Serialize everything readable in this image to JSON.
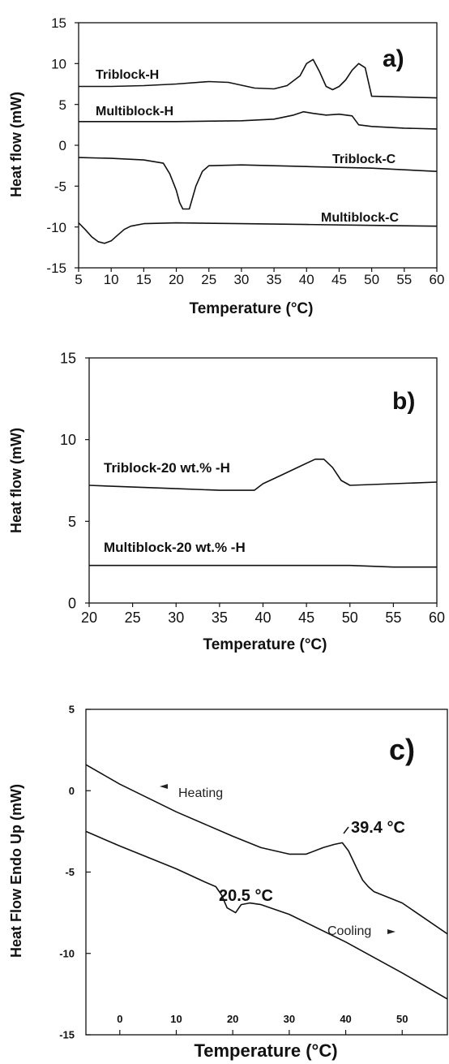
{
  "chart_data": [
    {
      "type": "line",
      "panel_label": "a)",
      "xlabel": "Temperature (°C)",
      "ylabel": "Heat flow (mW)",
      "xlim": [
        5,
        60
      ],
      "ylim": [
        -15,
        15
      ],
      "xticks": [
        5,
        10,
        15,
        20,
        25,
        30,
        35,
        40,
        45,
        50,
        55,
        60
      ],
      "yticks": [
        -15,
        -10,
        -5,
        0,
        5,
        10,
        15
      ],
      "series": [
        {
          "name": "Triblock-H",
          "x": [
            5,
            10,
            15,
            20,
            25,
            28,
            32,
            35,
            37,
            39,
            40,
            41,
            42,
            43,
            44,
            45,
            46,
            47,
            48,
            49,
            50,
            55,
            60
          ],
          "y": [
            7.2,
            7.2,
            7.3,
            7.5,
            7.8,
            7.7,
            7.0,
            6.9,
            7.3,
            8.5,
            10.0,
            10.5,
            9.0,
            7.2,
            6.8,
            7.2,
            8.0,
            9.2,
            10.0,
            9.5,
            6.0,
            5.9,
            5.8
          ]
        },
        {
          "name": "Multiblock-H",
          "x": [
            5,
            10,
            20,
            30,
            35,
            38,
            39.5,
            41,
            43,
            45,
            47,
            48,
            50,
            55,
            60
          ],
          "y": [
            2.9,
            2.9,
            2.9,
            3.0,
            3.2,
            3.7,
            4.1,
            3.9,
            3.7,
            3.8,
            3.6,
            2.5,
            2.3,
            2.1,
            2.0
          ]
        },
        {
          "name": "Triblock-C",
          "x": [
            5,
            10,
            15,
            18,
            19,
            20,
            20.5,
            21,
            22,
            23,
            24,
            25,
            30,
            40,
            50,
            55,
            60
          ],
          "y": [
            -1.5,
            -1.6,
            -1.8,
            -2.2,
            -3.5,
            -5.5,
            -7.0,
            -7.8,
            -7.8,
            -5.0,
            -3.2,
            -2.5,
            -2.4,
            -2.6,
            -2.8,
            -3.0,
            -3.2
          ]
        },
        {
          "name": "Multiblock-C",
          "x": [
            5,
            6,
            7,
            8,
            9,
            10,
            11,
            12,
            13,
            15,
            20,
            30,
            40,
            50,
            60
          ],
          "y": [
            -9.5,
            -10.3,
            -11.2,
            -11.8,
            -12.0,
            -11.7,
            -11.0,
            -10.3,
            -9.9,
            -9.6,
            -9.5,
            -9.6,
            -9.7,
            -9.8,
            -9.9
          ]
        }
      ]
    },
    {
      "type": "line",
      "panel_label": "b)",
      "xlabel": "Temperature (°C)",
      "ylabel": "Heat flow (mW)",
      "xlim": [
        20,
        60
      ],
      "ylim": [
        0,
        15
      ],
      "xticks": [
        20,
        25,
        30,
        35,
        40,
        45,
        50,
        55,
        60
      ],
      "yticks": [
        0,
        5,
        10,
        15
      ],
      "series": [
        {
          "name": "Triblock-20 wt.% -H",
          "x": [
            20,
            25,
            30,
            35,
            38,
            39,
            40,
            42,
            44,
            46,
            47,
            48,
            49,
            50,
            55,
            60
          ],
          "y": [
            7.2,
            7.1,
            7.0,
            6.9,
            6.9,
            6.9,
            7.3,
            7.8,
            8.3,
            8.8,
            8.8,
            8.3,
            7.5,
            7.2,
            7.3,
            7.4
          ]
        },
        {
          "name": "Multiblock-20 wt.% -H",
          "x": [
            20,
            30,
            40,
            50,
            55,
            60
          ],
          "y": [
            2.3,
            2.3,
            2.3,
            2.3,
            2.2,
            2.2
          ]
        }
      ]
    },
    {
      "type": "line",
      "panel_label": "c)",
      "xlabel": "Temperature (°C)",
      "ylabel": "Heat Flow Endo Up (mW)",
      "xlim": [
        -6,
        58
      ],
      "ylim": [
        -15,
        5
      ],
      "xticks": [
        0,
        10,
        20,
        30,
        40,
        50
      ],
      "yticks": [
        -15,
        -10,
        -5,
        0,
        5
      ],
      "annotations": [
        {
          "text": "Heating"
        },
        {
          "text": "Cooling"
        },
        {
          "text": "39.4 °C"
        },
        {
          "text": "20.5 °C"
        }
      ],
      "series": [
        {
          "name": "Heating",
          "x": [
            -6,
            0,
            10,
            20,
            25,
            30,
            33,
            36,
            38,
            39.4,
            40.5,
            42,
            43,
            44,
            45,
            50,
            58
          ],
          "y": [
            1.6,
            0.4,
            -1.3,
            -2.8,
            -3.5,
            -3.9,
            -3.9,
            -3.5,
            -3.3,
            -3.2,
            -3.7,
            -4.8,
            -5.5,
            -5.9,
            -6.2,
            -6.9,
            -8.8
          ]
        },
        {
          "name": "Cooling",
          "x": [
            -6,
            0,
            10,
            15,
            17,
            18,
            19,
            20.5,
            21.5,
            23,
            25,
            30,
            40,
            50,
            58
          ],
          "y": [
            -2.5,
            -3.4,
            -4.8,
            -5.6,
            -5.9,
            -6.4,
            -7.2,
            -7.5,
            -7.0,
            -6.9,
            -7.0,
            -7.6,
            -9.3,
            -11.2,
            -12.8
          ]
        }
      ]
    }
  ],
  "labels": {
    "a_panel": "a)",
    "a_ylabel": "Heat flow (mW)",
    "a_xlabel": "Temperature (°C)",
    "a_tri_h": "Triblock-H",
    "a_multi_h": "Multiblock-H",
    "a_tri_c": "Triblock-C",
    "a_multi_c": "Multiblock-C",
    "b_panel": "b)",
    "b_ylabel": "Heat flow (mW)",
    "b_xlabel": "Temperature (°C)",
    "b_tri": "Triblock-20 wt.% -H",
    "b_multi": "Multiblock-20 wt.% -H",
    "c_panel": "c)",
    "c_ylabel": "Heat Flow Endo Up (mW)",
    "c_xlabel": "Temperature (°C)",
    "c_heating": "Heating",
    "c_cooling": "Cooling",
    "c_peak_hi": "39.4 °C",
    "c_peak_lo": "20.5 °C"
  }
}
